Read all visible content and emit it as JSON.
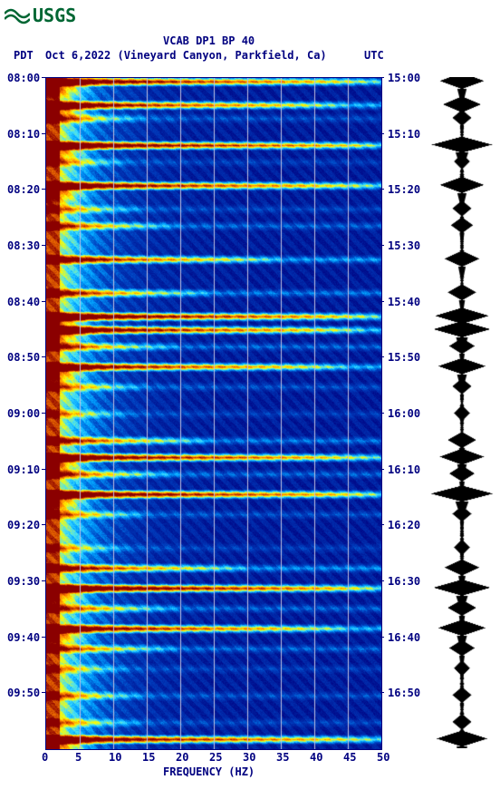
{
  "logo_text": "USGS",
  "title1": "VCAB DP1 BP 40",
  "title2_left": "PDT",
  "title2_center": "Oct 6,2022 (Vineyard Canyon, Parkfield, Ca)",
  "title2_right": "UTC",
  "x_label": "FREQUENCY (HZ)",
  "chart": {
    "type": "spectrogram",
    "x_ticks": [
      "0",
      "5",
      "10",
      "15",
      "20",
      "25",
      "30",
      "35",
      "40",
      "45",
      "50"
    ],
    "y_ticks_left": [
      "08:00",
      "08:10",
      "08:20",
      "08:30",
      "08:40",
      "08:50",
      "09:00",
      "09:10",
      "09:20",
      "09:30",
      "09:40",
      "09:50"
    ],
    "y_ticks_right": [
      "15:00",
      "15:10",
      "15:20",
      "15:30",
      "15:40",
      "15:50",
      "16:00",
      "16:10",
      "16:20",
      "16:30",
      "16:40",
      "16:50"
    ],
    "colormap": {
      "low": "#000080",
      "midlow": "#0040c0",
      "mid": "#00a0ff",
      "midhigh": "#40e0ff",
      "high1": "#ffff00",
      "high2": "#ff8000",
      "max": "#8b0000"
    },
    "gridline_color": "#c0c0e0",
    "events": [
      {
        "t": 0.005,
        "intensity": 0.9,
        "width": 1.0
      },
      {
        "t": 0.04,
        "intensity": 0.85,
        "width": 0.9
      },
      {
        "t": 0.06,
        "intensity": 0.4,
        "width": 0.3
      },
      {
        "t": 0.1,
        "intensity": 0.95,
        "width": 1.0
      },
      {
        "t": 0.125,
        "intensity": 0.3,
        "width": 0.25
      },
      {
        "t": 0.16,
        "intensity": 0.9,
        "width": 1.0
      },
      {
        "t": 0.195,
        "intensity": 0.35,
        "width": 0.3
      },
      {
        "t": 0.22,
        "intensity": 0.5,
        "width": 0.4
      },
      {
        "t": 0.27,
        "intensity": 0.75,
        "width": 0.7
      },
      {
        "t": 0.32,
        "intensity": 0.6,
        "width": 0.5
      },
      {
        "t": 0.355,
        "intensity": 0.95,
        "width": 1.0
      },
      {
        "t": 0.375,
        "intensity": 0.9,
        "width": 0.95
      },
      {
        "t": 0.4,
        "intensity": 0.5,
        "width": 0.4
      },
      {
        "t": 0.43,
        "intensity": 0.85,
        "width": 0.9
      },
      {
        "t": 0.46,
        "intensity": 0.4,
        "width": 0.3
      },
      {
        "t": 0.5,
        "intensity": 0.3,
        "width": 0.25
      },
      {
        "t": 0.54,
        "intensity": 0.6,
        "width": 0.5
      },
      {
        "t": 0.565,
        "intensity": 0.9,
        "width": 1.0
      },
      {
        "t": 0.59,
        "intensity": 0.5,
        "width": 0.4
      },
      {
        "t": 0.62,
        "intensity": 0.95,
        "width": 1.0
      },
      {
        "t": 0.65,
        "intensity": 0.4,
        "width": 0.3
      },
      {
        "t": 0.7,
        "intensity": 0.3,
        "width": 0.25
      },
      {
        "t": 0.73,
        "intensity": 0.7,
        "width": 0.6
      },
      {
        "t": 0.76,
        "intensity": 0.98,
        "width": 1.0
      },
      {
        "t": 0.79,
        "intensity": 0.5,
        "width": 0.4
      },
      {
        "t": 0.82,
        "intensity": 0.85,
        "width": 0.9
      },
      {
        "t": 0.85,
        "intensity": 0.5,
        "width": 0.4
      },
      {
        "t": 0.88,
        "intensity": 0.3,
        "width": 0.25
      },
      {
        "t": 0.92,
        "intensity": 0.4,
        "width": 0.3
      },
      {
        "t": 0.96,
        "intensity": 0.35,
        "width": 0.3
      },
      {
        "t": 0.985,
        "intensity": 0.9,
        "width": 1.0
      }
    ],
    "waveform_events": [
      {
        "t": 0.005,
        "amp": 0.7
      },
      {
        "t": 0.04,
        "amp": 0.6
      },
      {
        "t": 0.06,
        "amp": 0.3
      },
      {
        "t": 0.1,
        "amp": 0.95
      },
      {
        "t": 0.125,
        "amp": 0.25
      },
      {
        "t": 0.16,
        "amp": 0.7
      },
      {
        "t": 0.195,
        "amp": 0.3
      },
      {
        "t": 0.22,
        "amp": 0.35
      },
      {
        "t": 0.27,
        "amp": 0.55
      },
      {
        "t": 0.32,
        "amp": 0.45
      },
      {
        "t": 0.355,
        "amp": 0.85
      },
      {
        "t": 0.375,
        "amp": 0.9
      },
      {
        "t": 0.4,
        "amp": 0.4
      },
      {
        "t": 0.43,
        "amp": 0.75
      },
      {
        "t": 0.46,
        "amp": 0.3
      },
      {
        "t": 0.5,
        "amp": 0.25
      },
      {
        "t": 0.54,
        "amp": 0.45
      },
      {
        "t": 0.565,
        "amp": 0.7
      },
      {
        "t": 0.59,
        "amp": 0.4
      },
      {
        "t": 0.62,
        "amp": 0.98
      },
      {
        "t": 0.65,
        "amp": 0.3
      },
      {
        "t": 0.7,
        "amp": 0.25
      },
      {
        "t": 0.73,
        "amp": 0.55
      },
      {
        "t": 0.76,
        "amp": 0.9
      },
      {
        "t": 0.79,
        "amp": 0.45
      },
      {
        "t": 0.82,
        "amp": 0.75
      },
      {
        "t": 0.85,
        "amp": 0.4
      },
      {
        "t": 0.88,
        "amp": 0.25
      },
      {
        "t": 0.92,
        "amp": 0.3
      },
      {
        "t": 0.96,
        "amp": 0.3
      },
      {
        "t": 0.985,
        "amp": 0.8
      }
    ]
  }
}
